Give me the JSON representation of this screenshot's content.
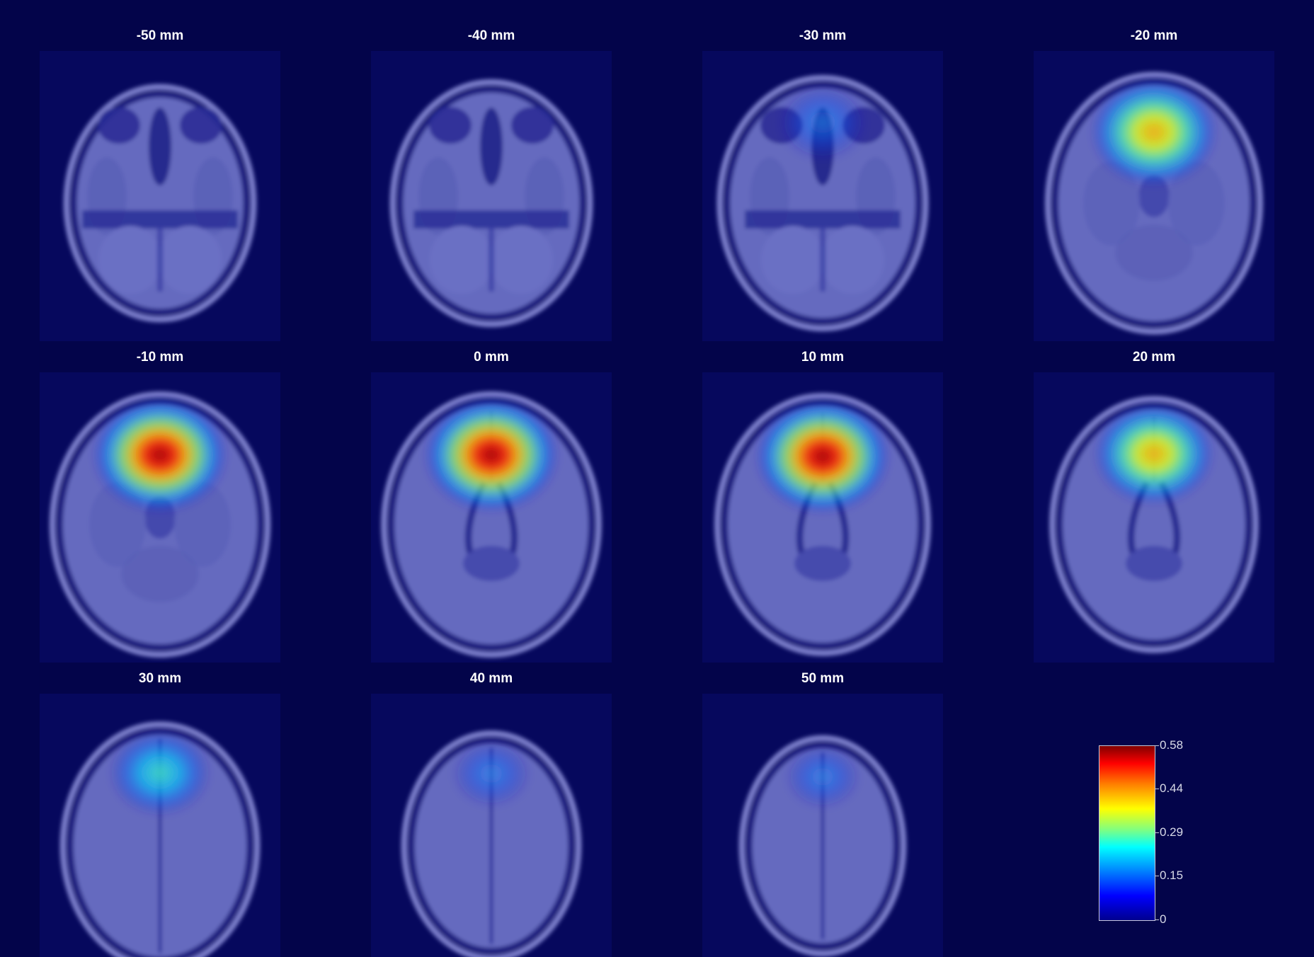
{
  "panels": [
    {
      "label": "-50 mm",
      "z": -50,
      "activation": 0.0
    },
    {
      "label": "-40 mm",
      "z": -40,
      "activation": 0.0
    },
    {
      "label": "-30 mm",
      "z": -30,
      "activation": 0.15
    },
    {
      "label": "-20 mm",
      "z": -20,
      "activation": 0.4
    },
    {
      "label": "-10 mm",
      "z": -10,
      "activation": 0.56
    },
    {
      "label": "0 mm",
      "z": 0,
      "activation": 0.58
    },
    {
      "label": "10 mm",
      "z": 10,
      "activation": 0.56
    },
    {
      "label": "20 mm",
      "z": 20,
      "activation": 0.35
    },
    {
      "label": "30 mm",
      "z": 30,
      "activation": 0.22
    },
    {
      "label": "40 mm",
      "z": 40,
      "activation": 0.06
    },
    {
      "label": "50 mm",
      "z": 50,
      "activation": 0.03
    }
  ],
  "colorbar": {
    "colormap": "jet",
    "min": 0,
    "max": 0.58,
    "ticks": [
      "0.58",
      "0.44",
      "0.29",
      "0.15",
      "0"
    ]
  },
  "colors": {
    "background": "#03044a",
    "brain_tint": "#6e74c8",
    "title_text": "#ffffff"
  }
}
